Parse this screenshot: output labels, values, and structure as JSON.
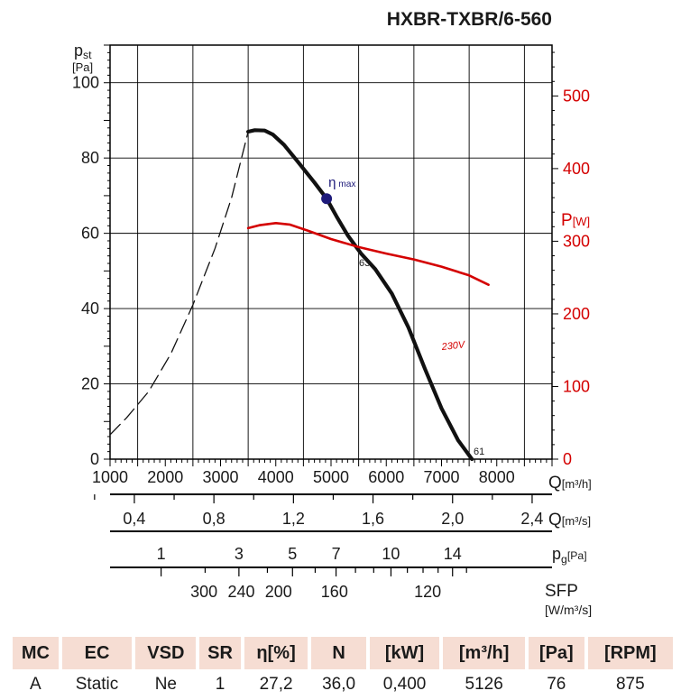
{
  "title": "HXBR-TXBR/6-560",
  "colors": {
    "curve": "#111111",
    "power": "#d40000",
    "marker": "#1e1a7a",
    "grid": "#000000"
  },
  "chart_data": {
    "type": "line",
    "title": "HXBR-TXBR/6-560",
    "xlabel": "Q [m3/h]",
    "ylabel": "pst [Pa]",
    "xlim": [
      1000,
      9000
    ],
    "ylim": [
      0,
      110
    ],
    "x_ticks": [
      "1000",
      "2000",
      "3000",
      "4000",
      "5000",
      "6000",
      "7000",
      "8000"
    ],
    "y_ticks": [
      "0",
      "20",
      "40",
      "60",
      "80",
      "100"
    ],
    "y2label": "P[W]",
    "y2lim": [
      0,
      570
    ],
    "y2_ticks": [
      "0",
      "100",
      "200",
      "300",
      "400",
      "500"
    ],
    "y_label_parts": {
      "sym": "p",
      "sub": "st",
      "unit": "[Pa]"
    },
    "y2_label_parts": {
      "sym": "P",
      "unit": "[W]"
    },
    "q_label": {
      "sym": "Q",
      "unit": "[m³/h]"
    },
    "series": [
      {
        "name": "63",
        "style": "solid",
        "axis": "left",
        "x": [
          3500,
          3620,
          3800,
          3950,
          4150,
          4400,
          4700,
          4920,
          5100,
          5300,
          5550,
          5800,
          6100,
          6400,
          6700,
          7000,
          7300,
          7550
        ],
        "y": [
          87,
          87.4,
          87.3,
          86.2,
          83.5,
          79,
          73.5,
          69.2,
          64.5,
          59.5,
          54.5,
          50.5,
          44,
          35,
          24,
          13.5,
          5,
          0
        ]
      },
      {
        "name": "",
        "style": "dashed",
        "axis": "left",
        "x": [
          1000,
          1300,
          1700,
          2100,
          2500,
          2900,
          3200,
          3500
        ],
        "y": [
          6.5,
          11,
          18,
          28,
          41,
          56,
          69.5,
          87
        ]
      },
      {
        "name": "230V",
        "style": "solid",
        "axis": "right",
        "x": [
          3500,
          3700,
          4000,
          4250,
          4600,
          5000,
          5500,
          6000,
          6500,
          7000,
          7500,
          7850
        ],
        "y": [
          318,
          322,
          325,
          323,
          314,
          303,
          292,
          283,
          275,
          265,
          253,
          240
        ]
      }
    ],
    "eta_max": {
      "label": "η",
      "sub": "max",
      "x": 4920,
      "y": 69.2
    },
    "flow_ls": {
      "label": "Q",
      "unit": "[m³/s]",
      "ticks": [
        {
          "v": 0.4,
          "text": "0,4"
        },
        {
          "v": 0.8,
          "text": "0,8"
        },
        {
          "v": 1.2,
          "text": "1,2"
        },
        {
          "v": 1.6,
          "text": "1,6"
        },
        {
          "v": 2.0,
          "text": "2,0"
        },
        {
          "v": 2.4,
          "text": "2,4"
        }
      ],
      "minor": [
        0.2,
        0.6,
        1.0,
        1.4,
        1.8,
        2.2
      ]
    },
    "pg_scale": {
      "label": "p",
      "sub": "g",
      "unit": "[Pa]",
      "ticks": [
        {
          "v": 1,
          "text": "1"
        },
        {
          "v": 3,
          "text": "3"
        },
        {
          "v": 5,
          "text": "5"
        },
        {
          "v": 7,
          "text": "7"
        },
        {
          "v": 10,
          "text": "10"
        },
        {
          "v": 14,
          "text": "14"
        }
      ],
      "minor": [
        2,
        4,
        6,
        8,
        9,
        11,
        12,
        13,
        15
      ]
    },
    "sfp_scale": {
      "label": "SFP",
      "unit": "[W/m³/s]",
      "ticks": [
        {
          "v": 300,
          "text": "300"
        },
        {
          "v": 240,
          "text": "240"
        },
        {
          "v": 200,
          "text": "200"
        },
        {
          "v": 160,
          "text": "160"
        },
        {
          "v": 120,
          "text": "120"
        }
      ],
      "minor": [
        280,
        260,
        220,
        180,
        140
      ]
    }
  },
  "table": {
    "headers": [
      "MC",
      "EC",
      "VSD",
      "SR",
      "η[%]",
      "N",
      "[kW]",
      "[m³/h]",
      "[Pa]",
      "[RPM]"
    ],
    "values": [
      "A",
      "Static",
      "Ne",
      "1",
      "27,2",
      "36,0",
      "0,400",
      "5126",
      "76",
      "875"
    ]
  }
}
